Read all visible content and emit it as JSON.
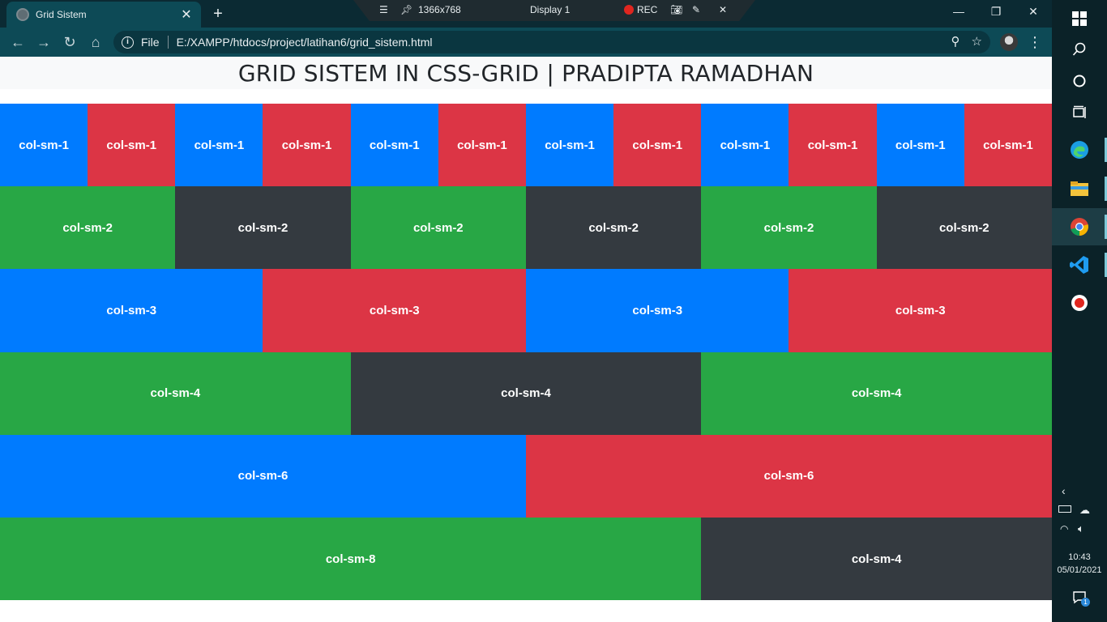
{
  "browser": {
    "tab_title": "Grid Sistem",
    "tab_close": "✕",
    "new_tab": "+",
    "url_scheme_label": "File",
    "url": "E:/XAMPP/htdocs/project/latihan6/grid_sistem.html"
  },
  "recorder": {
    "resolution": "1366x768",
    "display": "Display 1",
    "rec_label": "REC"
  },
  "page": {
    "heading": "GRID SISTEM IN CSS-GRID | PRADIPTA RAMADHAN",
    "rows": [
      [
        {
          "label": "col-sm-1",
          "span": 1,
          "color": "#007bff"
        },
        {
          "label": "col-sm-1",
          "span": 1,
          "color": "#dc3545"
        },
        {
          "label": "col-sm-1",
          "span": 1,
          "color": "#007bff"
        },
        {
          "label": "col-sm-1",
          "span": 1,
          "color": "#dc3545"
        },
        {
          "label": "col-sm-1",
          "span": 1,
          "color": "#007bff"
        },
        {
          "label": "col-sm-1",
          "span": 1,
          "color": "#dc3545"
        },
        {
          "label": "col-sm-1",
          "span": 1,
          "color": "#007bff"
        },
        {
          "label": "col-sm-1",
          "span": 1,
          "color": "#dc3545"
        },
        {
          "label": "col-sm-1",
          "span": 1,
          "color": "#007bff"
        },
        {
          "label": "col-sm-1",
          "span": 1,
          "color": "#dc3545"
        },
        {
          "label": "col-sm-1",
          "span": 1,
          "color": "#007bff"
        },
        {
          "label": "col-sm-1",
          "span": 1,
          "color": "#dc3545"
        }
      ],
      [
        {
          "label": "col-sm-2",
          "span": 2,
          "color": "#28a745"
        },
        {
          "label": "col-sm-2",
          "span": 2,
          "color": "#343a40"
        },
        {
          "label": "col-sm-2",
          "span": 2,
          "color": "#28a745"
        },
        {
          "label": "col-sm-2",
          "span": 2,
          "color": "#343a40"
        },
        {
          "label": "col-sm-2",
          "span": 2,
          "color": "#28a745"
        },
        {
          "label": "col-sm-2",
          "span": 2,
          "color": "#343a40"
        }
      ],
      [
        {
          "label": "col-sm-3",
          "span": 3,
          "color": "#007bff"
        },
        {
          "label": "col-sm-3",
          "span": 3,
          "color": "#dc3545"
        },
        {
          "label": "col-sm-3",
          "span": 3,
          "color": "#007bff"
        },
        {
          "label": "col-sm-3",
          "span": 3,
          "color": "#dc3545"
        }
      ],
      [
        {
          "label": "col-sm-4",
          "span": 4,
          "color": "#28a745"
        },
        {
          "label": "col-sm-4",
          "span": 4,
          "color": "#343a40"
        },
        {
          "label": "col-sm-4",
          "span": 4,
          "color": "#28a745"
        }
      ],
      [
        {
          "label": "col-sm-6",
          "span": 6,
          "color": "#007bff"
        },
        {
          "label": "col-sm-6",
          "span": 6,
          "color": "#dc3545"
        }
      ],
      [
        {
          "label": "col-sm-8",
          "span": 8,
          "color": "#28a745"
        },
        {
          "label": "col-sm-4",
          "span": 4,
          "color": "#343a40"
        }
      ]
    ]
  },
  "taskbar": {
    "icons": [
      "windows-start-icon",
      "search-icon",
      "cortana-icon",
      "task-view-icon",
      "edge-icon",
      "file-explorer-icon",
      "chrome-icon",
      "vscode-icon",
      "recorder-icon"
    ],
    "time": "10:43",
    "date": "05/01/2021",
    "notification_count": "1"
  }
}
